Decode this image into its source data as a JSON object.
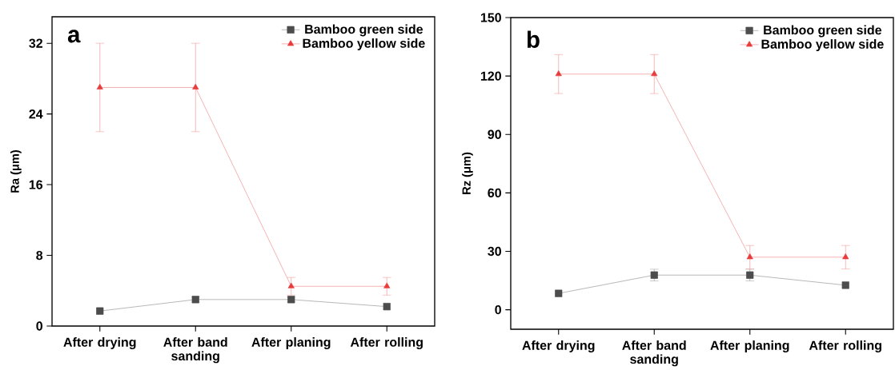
{
  "chart_data": [
    {
      "type": "line",
      "ylabel": "Ra (μm)",
      "annotations": [
        "a"
      ],
      "categories": [
        "After drying",
        "After band sanding",
        "After planing",
        "After rolling"
      ],
      "series": [
        {
          "name": "Bamboo green side",
          "color": "#4d4d4d",
          "marker": "square",
          "values": [
            1.7,
            3.0,
            3.0,
            2.2
          ],
          "errors": [
            null,
            0.3,
            0.3,
            null
          ]
        },
        {
          "name": "Bamboo yellow side",
          "color": "#e83c3c",
          "marker": "triangle",
          "values": [
            27,
            27,
            4.5,
            4.5
          ],
          "errors": [
            5,
            5,
            1,
            1
          ]
        }
      ],
      "ylim": [
        0,
        35
      ],
      "yticks": [
        0,
        8,
        16,
        24,
        32
      ],
      "legend": "top right",
      "grid": false,
      "line_style": "solid"
    },
    {
      "type": "line",
      "ylabel": "Rz (μm)",
      "annotations": [
        "b"
      ],
      "categories": [
        "After drying",
        "After band sanding",
        "After planing",
        "After rolling"
      ],
      "series": [
        {
          "name": "Bamboo green side",
          "color": "#4d4d4d",
          "marker": "square",
          "values": [
            8.4,
            17.8,
            17.8,
            12.6
          ],
          "errors": [
            null,
            3,
            3,
            null
          ]
        },
        {
          "name": "Bamboo yellow side",
          "color": "#e83c3c",
          "marker": "triangle",
          "values": [
            121,
            121,
            27,
            27
          ],
          "errors": [
            10,
            10,
            6,
            6
          ]
        }
      ],
      "ylim": [
        -10,
        150
      ],
      "yticks": [
        0,
        30,
        60,
        90,
        120,
        150
      ],
      "legend": "top right",
      "grid": false,
      "line_style": "solid"
    }
  ]
}
